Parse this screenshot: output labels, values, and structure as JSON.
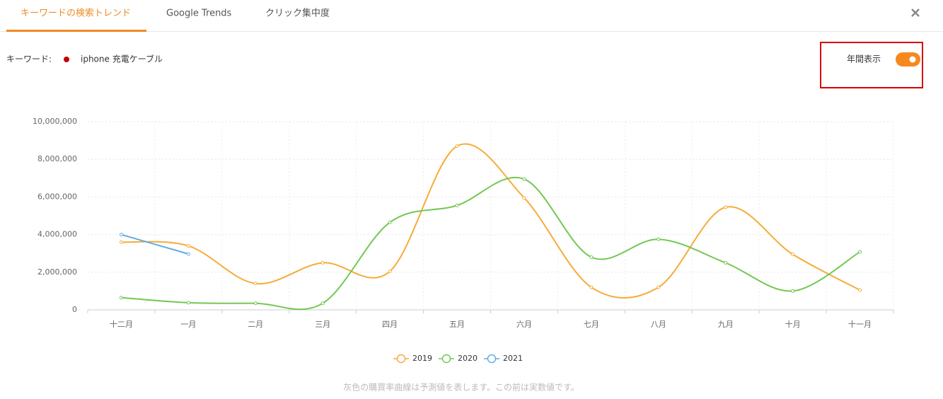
{
  "tabs": [
    "キーワードの検索トレンド",
    "Google Trends",
    "クリック集中度"
  ],
  "active_tab": 0,
  "keyword": {
    "label": "キーワード:",
    "value": "iphone 充電ケーブル"
  },
  "toggle": {
    "label": "年間表示",
    "on": true
  },
  "chart_data": {
    "type": "line",
    "categories": [
      "十二月",
      "一月",
      "二月",
      "三月",
      "四月",
      "五月",
      "六月",
      "七月",
      "八月",
      "九月",
      "十月",
      "十一月"
    ],
    "series": [
      {
        "name": "2019",
        "color": "#f5ac38",
        "values": [
          3600000,
          3400000,
          1400000,
          2500000,
          2050000,
          8700000,
          5950000,
          1200000,
          1200000,
          5450000,
          2950000,
          1050000
        ]
      },
      {
        "name": "2020",
        "color": "#72c853",
        "values": [
          650000,
          380000,
          350000,
          350000,
          4650000,
          5550000,
          6950000,
          2800000,
          3750000,
          2500000,
          1000000,
          3080000
        ]
      },
      {
        "name": "2021",
        "color": "#5eace6",
        "values": [
          4000000,
          2970000,
          null,
          null,
          null,
          null,
          null,
          null,
          null,
          null,
          null,
          null
        ]
      }
    ],
    "ylim": [
      0,
      10000000
    ],
    "yticks": [
      0,
      {
        "value": 2000000,
        "label": "2,000,000"
      },
      {
        "value": 4000000,
        "label": "4,000,000"
      },
      {
        "value": 6000000,
        "label": "6,000,000"
      },
      {
        "value": 8000000,
        "label": "8,000,000"
      },
      {
        "value": 10000000,
        "label": "10,000,000"
      }
    ],
    "grid": true,
    "smooth": true,
    "legend": "bottom"
  },
  "note": "灰色の購買率曲線は予測値を表します。この前は実数値です。"
}
